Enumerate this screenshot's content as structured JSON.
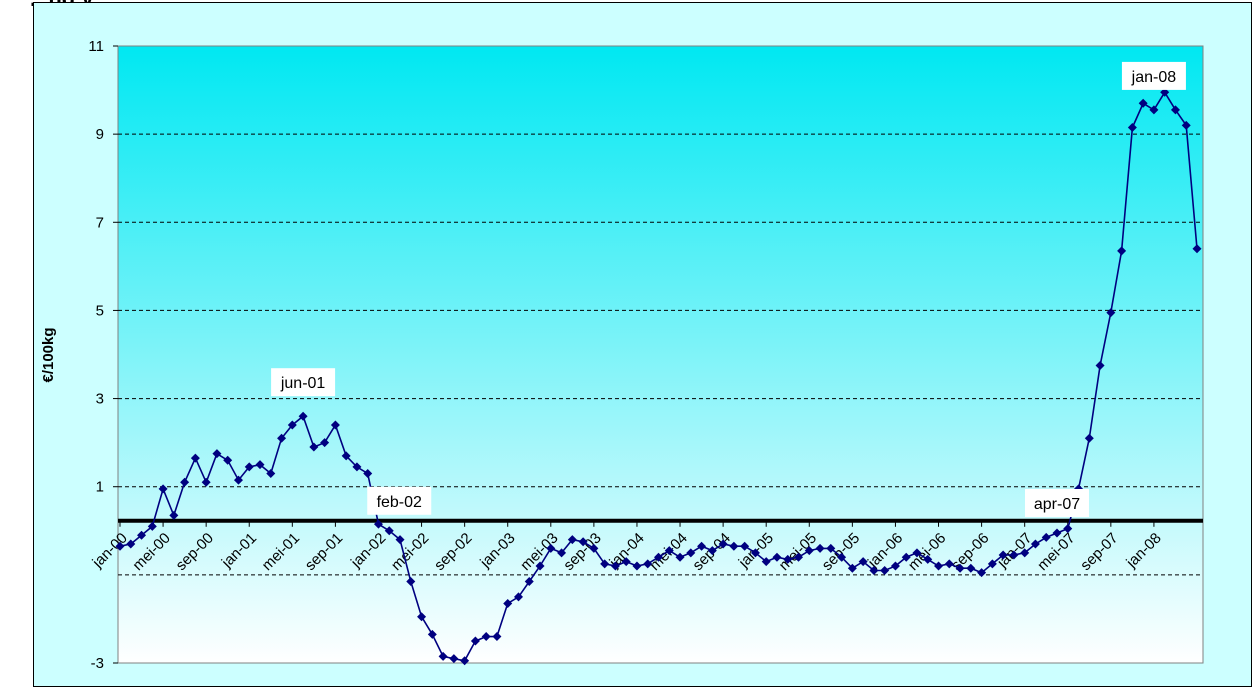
{
  "chart_data": {
    "type": "line",
    "title": "",
    "title_strip_visible": "...ng y",
    "xlabel": "",
    "ylabel": "€/100kg",
    "ylim": [
      -3,
      11
    ],
    "y_ticks": [
      -3,
      1,
      3,
      5,
      7,
      9,
      11
    ],
    "grid": "horizontal dashed",
    "background": "gradient cyan to white",
    "colors": {
      "series": "#000080",
      "zero_line": "#000000",
      "grid": "#000000"
    },
    "x_tick_labels": [
      "jan-00",
      "mei-00",
      "sep-00",
      "jan-01",
      "mei-01",
      "sep-01",
      "jan-02",
      "mei-02",
      "sep-02",
      "jan-03",
      "mei-03",
      "sep-03",
      "jan-04",
      "mei-04",
      "sep-04",
      "jan-05",
      "mei-05",
      "sep-05",
      "jan-06",
      "mei-06",
      "sep-06",
      "jan-07",
      "mei-07",
      "sep-07",
      "jan-08"
    ],
    "annotations": [
      {
        "text": "jun-01",
        "index": 17
      },
      {
        "text": "feb-02",
        "index": 25
      },
      {
        "text": "apr-07",
        "index": 87
      },
      {
        "text": "jan-08",
        "index": 96
      }
    ],
    "values": [
      -0.35,
      -0.3,
      -0.1,
      0.1,
      0.95,
      0.35,
      1.1,
      1.65,
      1.1,
      1.75,
      1.6,
      1.15,
      1.45,
      1.5,
      1.3,
      2.1,
      2.4,
      2.6,
      1.9,
      2.0,
      2.4,
      1.7,
      1.45,
      1.3,
      0.15,
      0.0,
      -0.2,
      -1.15,
      -1.95,
      -2.35,
      -2.85,
      -2.9,
      -2.95,
      -2.5,
      -2.4,
      -2.4,
      -1.65,
      -1.5,
      -1.15,
      -0.8,
      -0.4,
      -0.5,
      -0.2,
      -0.25,
      -0.4,
      -0.75,
      -0.8,
      -0.7,
      -0.8,
      -0.75,
      -0.6,
      -0.45,
      -0.6,
      -0.5,
      -0.35,
      -0.45,
      -0.3,
      -0.35,
      -0.35,
      -0.5,
      -0.7,
      -0.6,
      -0.65,
      -0.6,
      -0.45,
      -0.4,
      -0.4,
      -0.6,
      -0.85,
      -0.7,
      -0.9,
      -0.9,
      -0.8,
      -0.6,
      -0.5,
      -0.65,
      -0.8,
      -0.75,
      -0.85,
      -0.85,
      -0.95,
      -0.75,
      -0.55,
      -0.55,
      -0.5,
      -0.3,
      -0.15,
      -0.05,
      0.05,
      0.95,
      2.1,
      3.75,
      4.95,
      6.35,
      9.15,
      9.7,
      9.55,
      9.95,
      9.55,
      9.2,
      6.4
    ]
  }
}
